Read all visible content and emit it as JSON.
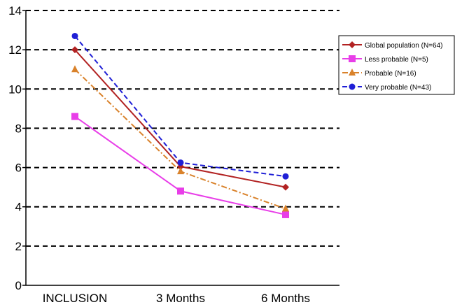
{
  "chart_data": {
    "type": "line",
    "categories": [
      "INCLUSION",
      "3 Months",
      "6 Months"
    ],
    "ylim": [
      0,
      14
    ],
    "yticks": [
      0,
      2,
      4,
      6,
      8,
      10,
      12,
      14
    ],
    "grid": "horizontal dashed",
    "legend_position": "right",
    "title": "",
    "xlabel": "",
    "ylabel": "",
    "series": [
      {
        "name": "Global population (N=64)",
        "values": [
          12.0,
          6.05,
          5.0
        ],
        "color": "#b22222",
        "dash": "solid",
        "marker": "diamond"
      },
      {
        "name": "Less probable (N=5)",
        "values": [
          8.6,
          4.8,
          3.6
        ],
        "color": "#e83ee8",
        "dash": "solid",
        "marker": "square"
      },
      {
        "name": "Probable (N=16)",
        "values": [
          11.0,
          5.8,
          3.9
        ],
        "color": "#d9822b",
        "dash": "dashdot",
        "marker": "triangle"
      },
      {
        "name": "Very probable (N=43)",
        "values": [
          12.7,
          6.25,
          5.55
        ],
        "color": "#1f1fd6",
        "dash": "dashed",
        "marker": "circle"
      }
    ]
  }
}
